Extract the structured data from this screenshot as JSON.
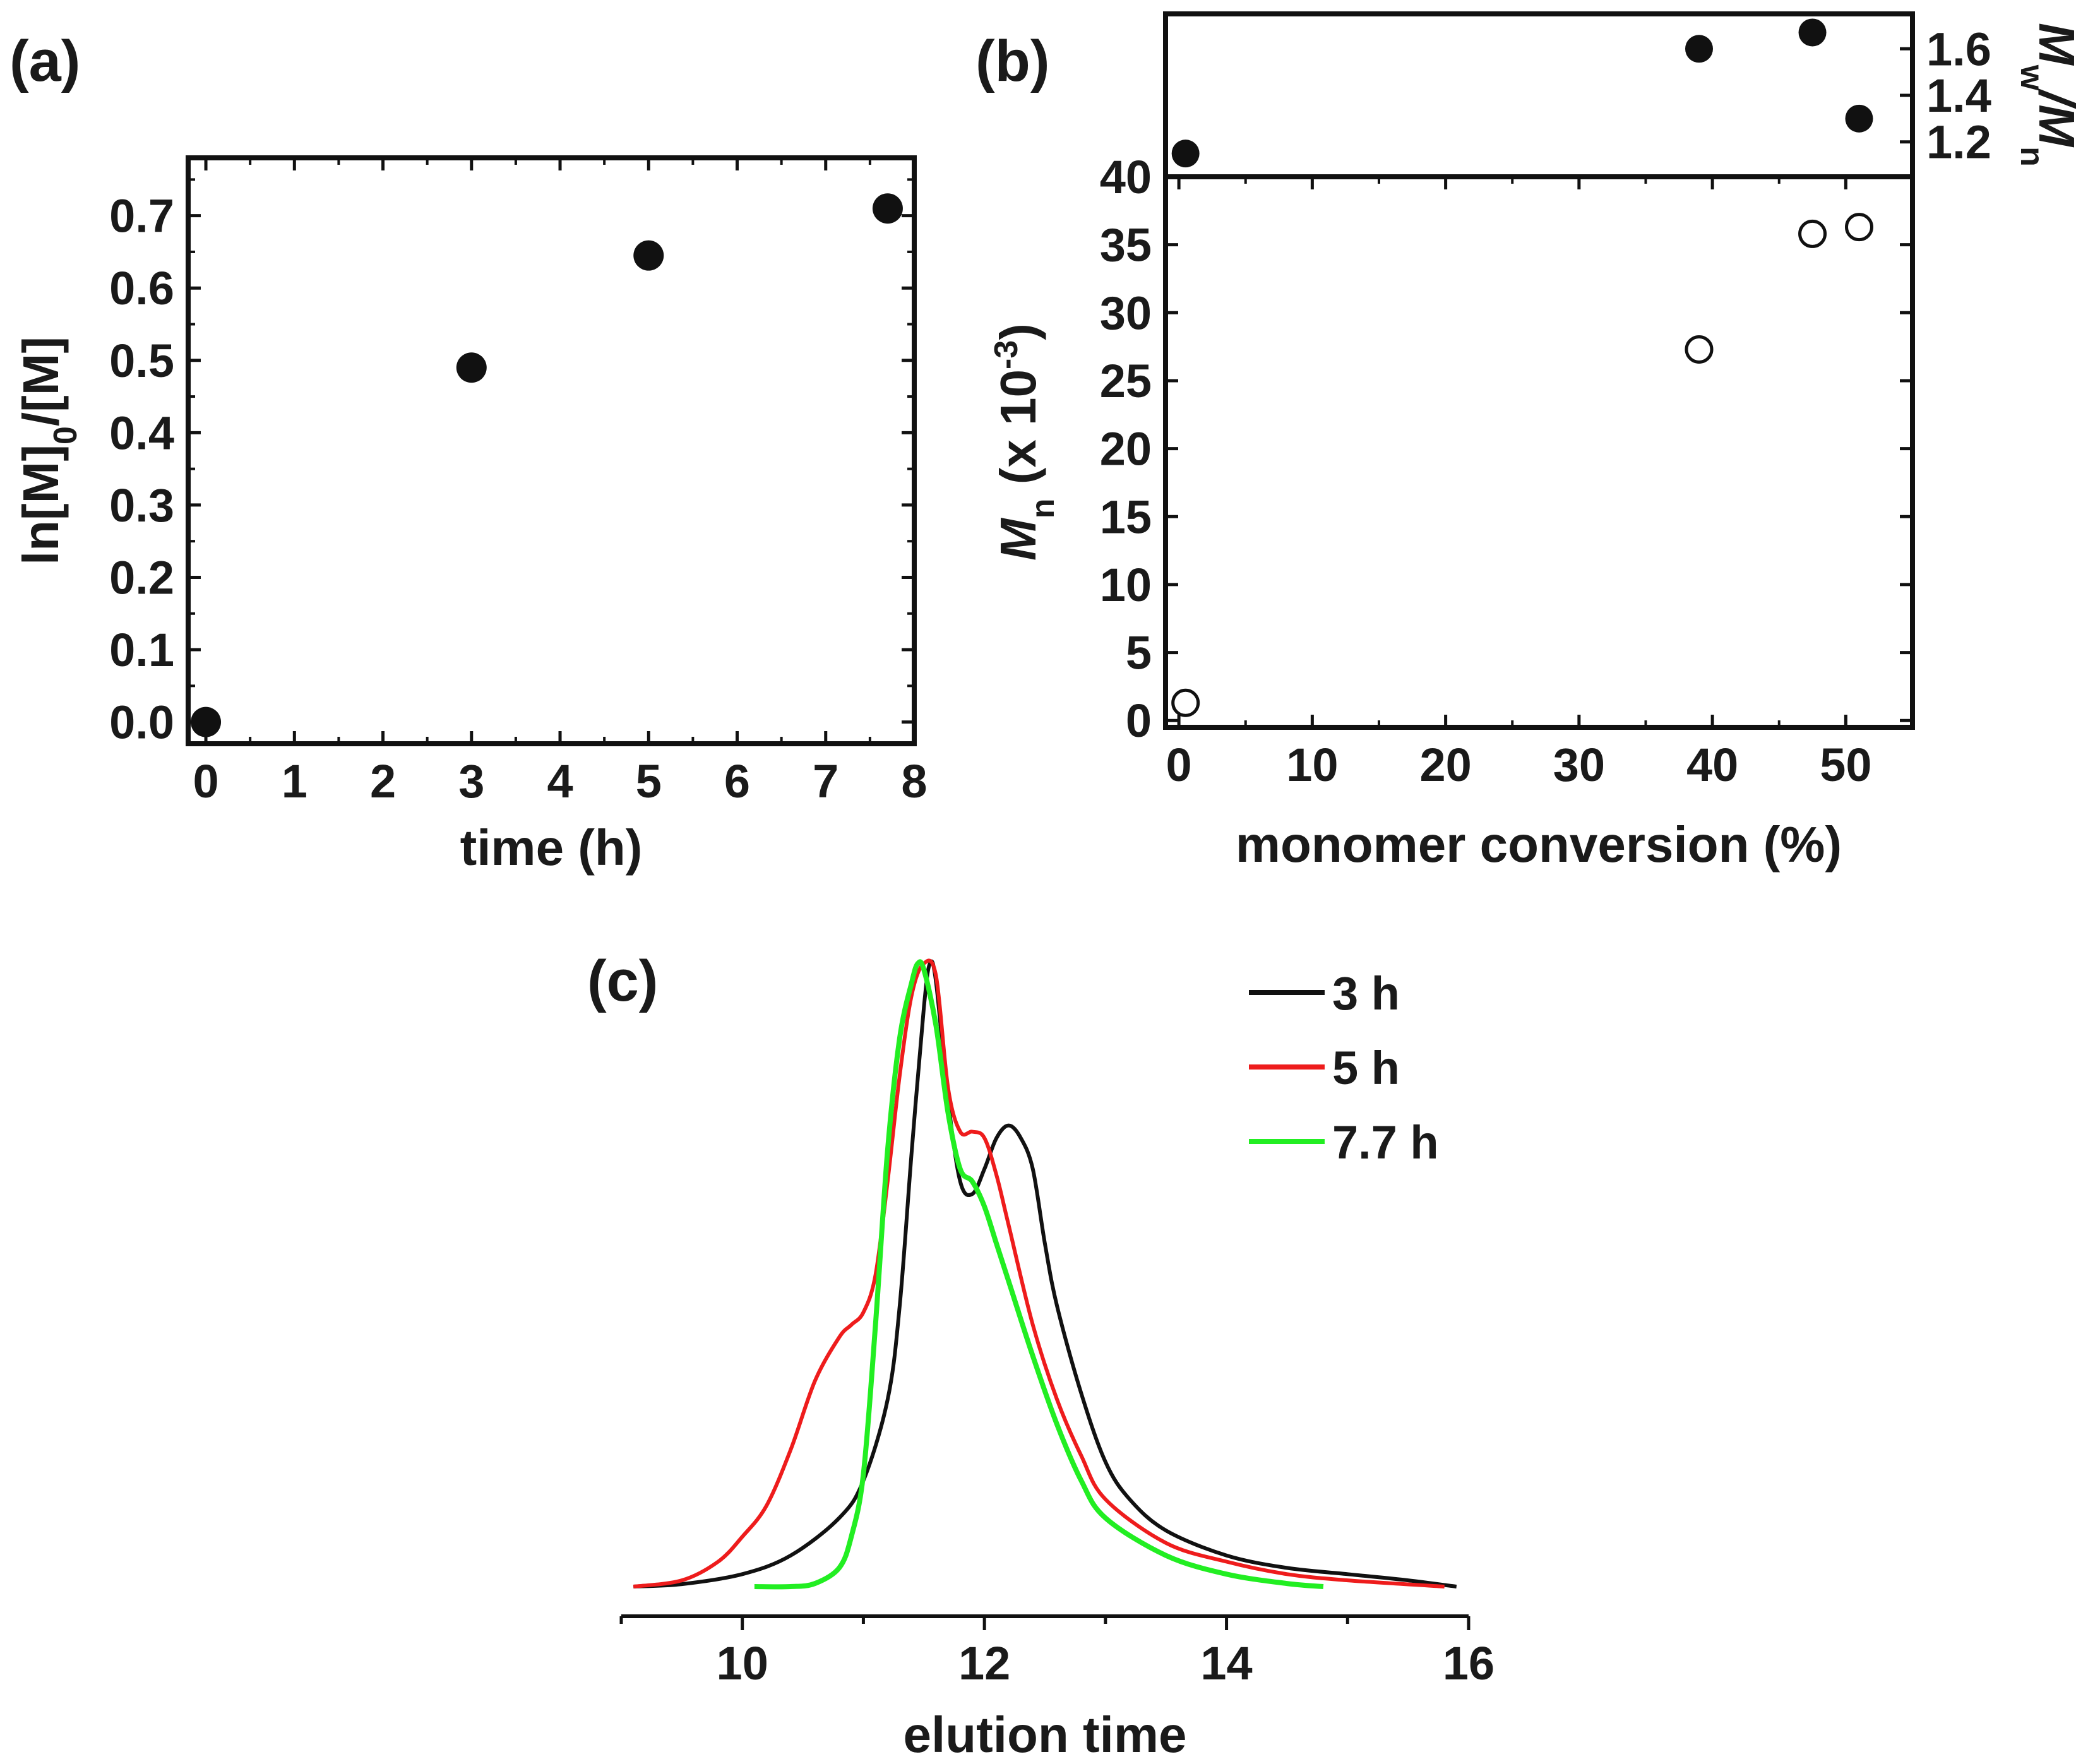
{
  "chart_data": [
    {
      "panel": "(a)",
      "type": "scatter",
      "title": "",
      "xlabel": "time (h)",
      "ylabel": "ln[M]0/[M]",
      "xlim": [
        -0.2,
        8
      ],
      "ylim": [
        -0.03,
        0.78
      ],
      "xticks": [
        0,
        1,
        2,
        3,
        4,
        5,
        6,
        7,
        8
      ],
      "yticks": [
        0.0,
        0.1,
        0.2,
        0.3,
        0.4,
        0.5,
        0.6,
        0.7
      ],
      "ytick_labels": [
        "0.0",
        "0.1",
        "0.2",
        "0.3",
        "0.4",
        "0.5",
        "0.6",
        "0.7"
      ],
      "series": [
        {
          "marker": "filled-circle",
          "x": [
            0,
            3,
            5,
            7.7
          ],
          "y": [
            0.0,
            0.49,
            0.645,
            0.71
          ]
        }
      ],
      "grid": false
    },
    {
      "panel": "(b)",
      "type": "scatter",
      "title": "",
      "xlabel": "monomer conversion (%)",
      "xlim": [
        -1,
        55
      ],
      "xticks": [
        0,
        10,
        20,
        30,
        40,
        50
      ],
      "lower": {
        "ylabel_main": "M",
        "ylabel_sub": "n",
        "ylabel_rest": " (x 10",
        "ylabel_sup": "-3",
        "ylabel_end": ")",
        "ylim": [
          -0.5,
          40
        ],
        "yticks": [
          0,
          5,
          10,
          15,
          20,
          25,
          30,
          35,
          40
        ],
        "series": [
          {
            "marker": "open-circle",
            "x": [
              0.5,
              39,
              47.5,
              51
            ],
            "y": [
              1.3,
              27.3,
              35.8,
              36.3
            ]
          }
        ]
      },
      "upper": {
        "ylabel_main": "M",
        "ylabel_sub": "w",
        "ylabel_mid": "/M",
        "ylabel_sub2": "n",
        "ylim": [
          1.05,
          1.75
        ],
        "yticks": [
          1.2,
          1.4,
          1.6
        ],
        "series": [
          {
            "marker": "filled-circle",
            "x": [
              0.5,
              39,
              47.5,
              51
            ],
            "y": [
              1.15,
              1.6,
              1.67,
              1.3
            ]
          }
        ]
      },
      "grid": false
    },
    {
      "panel": "(c)",
      "type": "line",
      "title": "",
      "xlabel": "elution time",
      "xlim": [
        9,
        16
      ],
      "ylim": [
        0,
        1
      ],
      "xticks": [
        10,
        12,
        14,
        16
      ],
      "legend_position": "top-right",
      "series": [
        {
          "name": "3 h",
          "color": "#111111",
          "x": [
            9.1,
            9.5,
            10.0,
            10.4,
            10.8,
            11.0,
            11.2,
            11.3,
            11.4,
            11.5,
            11.55,
            11.6,
            11.7,
            11.8,
            11.9,
            12.0,
            12.1,
            12.2,
            12.3,
            12.4,
            12.5,
            12.6,
            12.8,
            13.0,
            13.2,
            13.5,
            14.0,
            14.5,
            15.0,
            15.5,
            15.9
          ],
          "y": [
            0.0,
            0.004,
            0.02,
            0.05,
            0.11,
            0.17,
            0.3,
            0.45,
            0.7,
            0.93,
            1.0,
            0.97,
            0.78,
            0.65,
            0.63,
            0.67,
            0.72,
            0.74,
            0.72,
            0.67,
            0.55,
            0.45,
            0.31,
            0.2,
            0.14,
            0.09,
            0.05,
            0.03,
            0.02,
            0.01,
            0.0
          ]
        },
        {
          "name": "5 h",
          "color": "#ee1c1c",
          "x": [
            9.1,
            9.5,
            9.8,
            10.0,
            10.2,
            10.4,
            10.6,
            10.8,
            10.9,
            11.0,
            11.1,
            11.2,
            11.3,
            11.4,
            11.5,
            11.6,
            11.7,
            11.8,
            11.9,
            12.0,
            12.1,
            12.2,
            12.4,
            12.6,
            12.8,
            13.0,
            13.5,
            14.0,
            14.5,
            15.0,
            15.8
          ],
          "y": [
            0.0,
            0.01,
            0.04,
            0.08,
            0.13,
            0.22,
            0.33,
            0.4,
            0.42,
            0.44,
            0.5,
            0.65,
            0.82,
            0.95,
            1.0,
            0.98,
            0.8,
            0.73,
            0.73,
            0.72,
            0.66,
            0.58,
            0.42,
            0.3,
            0.21,
            0.14,
            0.07,
            0.04,
            0.02,
            0.01,
            0.0
          ]
        },
        {
          "name": "7.7 h",
          "color": "#22ee22",
          "x": [
            10.1,
            10.4,
            10.6,
            10.8,
            10.9,
            11.0,
            11.1,
            11.2,
            11.3,
            11.4,
            11.45,
            11.5,
            11.6,
            11.7,
            11.8,
            11.9,
            12.0,
            12.1,
            12.2,
            12.4,
            12.6,
            12.8,
            13.0,
            13.5,
            14.0,
            14.5,
            14.8
          ],
          "y": [
            0.0,
            0.0,
            0.005,
            0.03,
            0.08,
            0.18,
            0.42,
            0.7,
            0.88,
            0.97,
            1.0,
            0.99,
            0.9,
            0.76,
            0.67,
            0.65,
            0.61,
            0.55,
            0.49,
            0.37,
            0.26,
            0.17,
            0.11,
            0.05,
            0.02,
            0.005,
            0.0
          ]
        }
      ],
      "grid": false
    }
  ]
}
